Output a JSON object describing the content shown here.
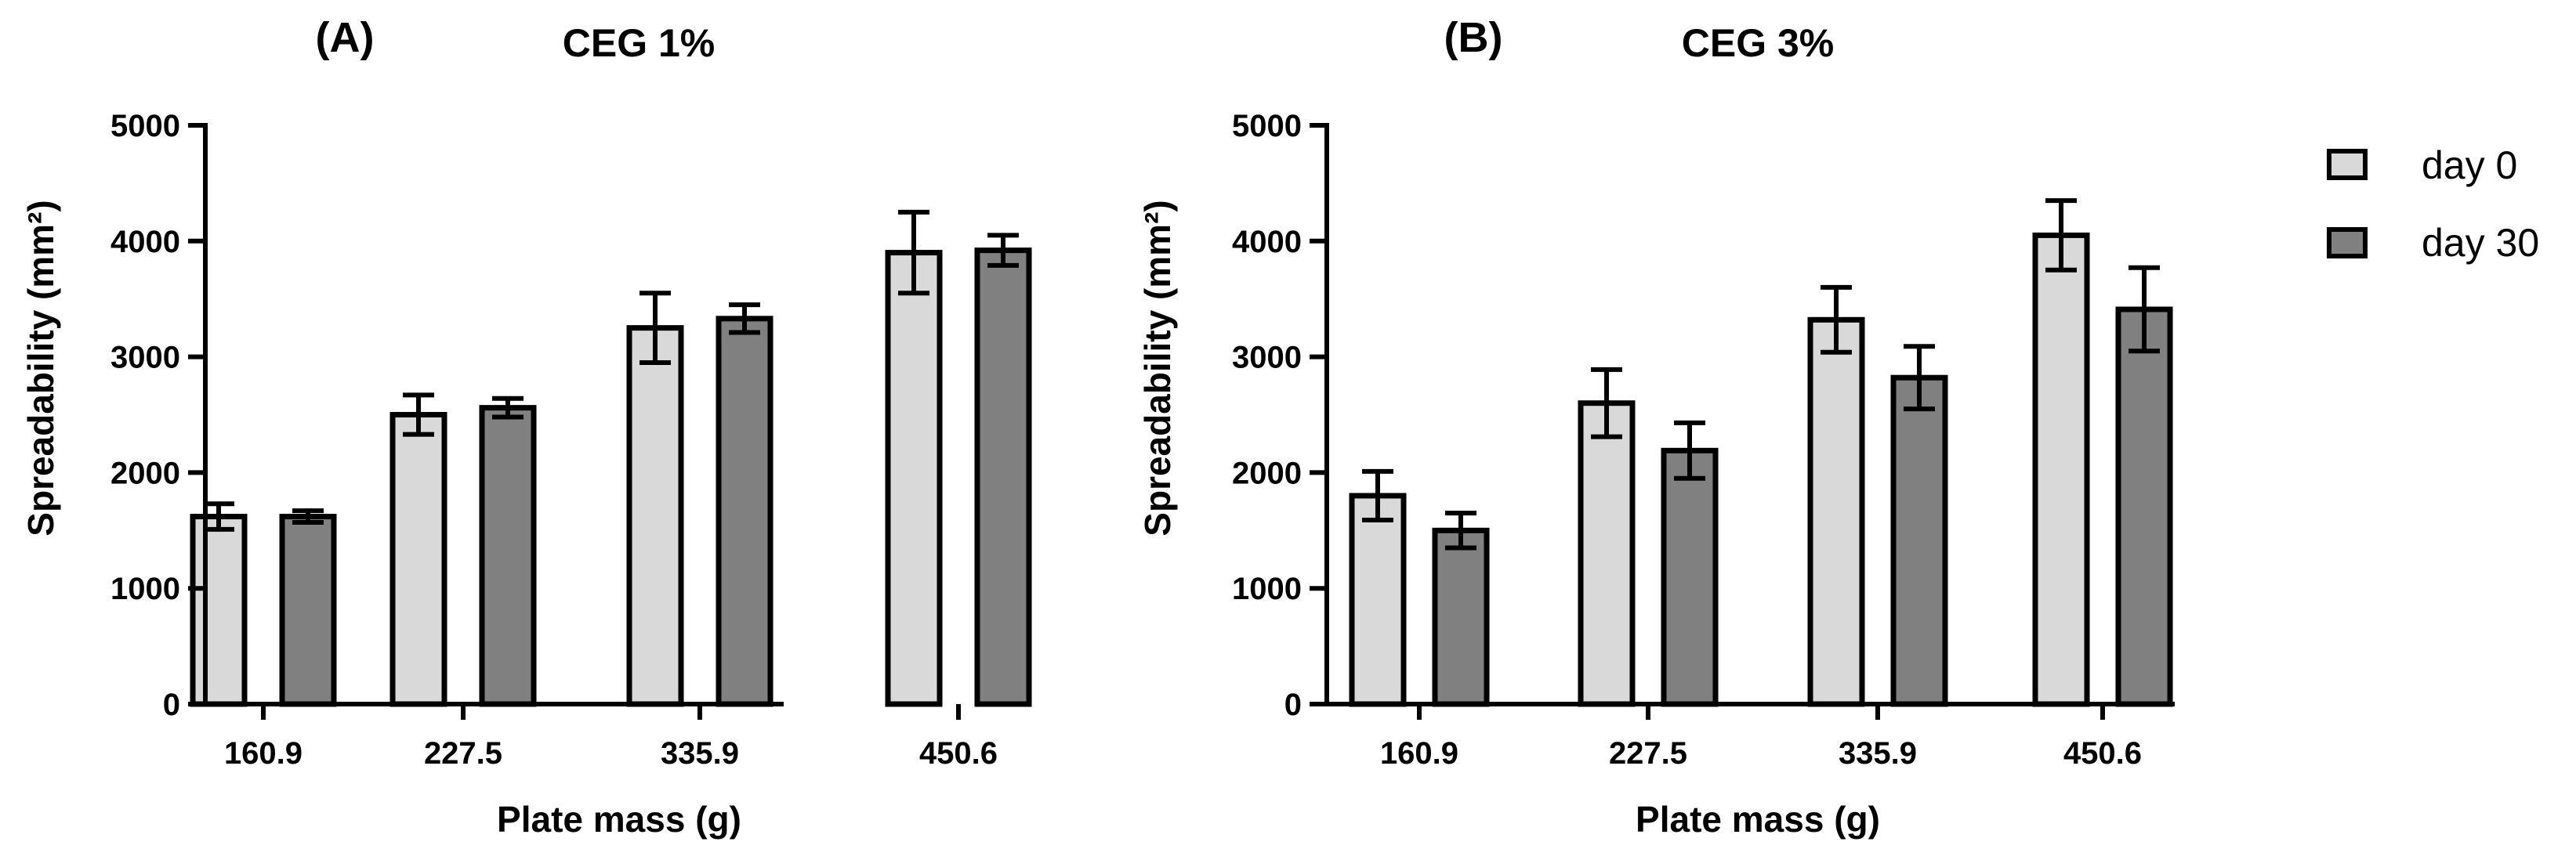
{
  "chart_data": [
    {
      "type": "bar",
      "panel_label": "(A)",
      "title": "CEG 1%",
      "xlabel": "Plate mass (g)",
      "ylabel": "Spreadability (mm²)",
      "categories": [
        "160.9",
        "227.5",
        "335.9",
        "450.6"
      ],
      "ylim": [
        0,
        5000
      ],
      "yticks": [
        0,
        1000,
        2000,
        3000,
        4000,
        5000
      ],
      "ytick_labels": [
        "0",
        "1000",
        "2000",
        "3000",
        "4000",
        "5000"
      ],
      "series": [
        {
          "name": "day 0",
          "color": "#d9d9d9",
          "values": [
            1620,
            2500,
            3250,
            3900
          ],
          "errors": [
            110,
            170,
            300,
            350
          ]
        },
        {
          "name": "day 30",
          "color": "#808080",
          "values": [
            1620,
            2560,
            3330,
            3920
          ],
          "errors": [
            50,
            80,
            120,
            130
          ]
        }
      ]
    },
    {
      "type": "bar",
      "panel_label": "(B)",
      "title": "CEG 3%",
      "xlabel": "Plate mass (g)",
      "ylabel": "Spreadability (mm²)",
      "categories": [
        "160.9",
        "227.5",
        "335.9",
        "450.6"
      ],
      "ylim": [
        0,
        5000
      ],
      "yticks": [
        0,
        1000,
        2000,
        3000,
        4000,
        5000
      ],
      "ytick_labels": [
        "0",
        "1000",
        "2000",
        "3000",
        "4000",
        "5000"
      ],
      "series": [
        {
          "name": "day 0",
          "color": "#d9d9d9",
          "values": [
            1800,
            2600,
            3320,
            4050
          ],
          "errors": [
            210,
            290,
            280,
            300
          ]
        },
        {
          "name": "day 30",
          "color": "#808080",
          "values": [
            1500,
            2190,
            2820,
            3410
          ],
          "errors": [
            150,
            240,
            270,
            360
          ]
        }
      ]
    }
  ],
  "legend": {
    "position": "right",
    "entries": [
      {
        "label": "day 0",
        "color": "#d9d9d9"
      },
      {
        "label": "day 30",
        "color": "#808080"
      }
    ]
  }
}
